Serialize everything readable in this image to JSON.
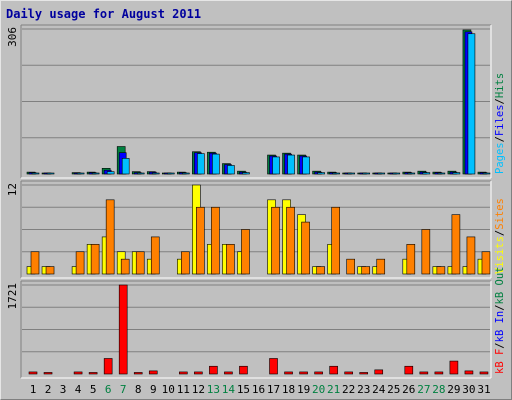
{
  "title": "Daily usage for August 2011",
  "colors": {
    "pages": "#00c0ff",
    "files": "#0000ff",
    "hits": "#008040",
    "visits": "#ffff00",
    "sites": "#ff8000",
    "kb": "#ff0000",
    "kb_in": "#0000ff",
    "kb_out": "#008040",
    "weekend_day": "#008040"
  },
  "chart_data": [
    {
      "type": "bar",
      "panel": "top",
      "ymax_label": "306",
      "ylim": [
        0,
        306
      ],
      "grid": true,
      "legend": {
        "placement": "right",
        "entries": [
          "Pages",
          "/",
          "Files",
          "/",
          "Hits"
        ]
      },
      "categories": [
        "1",
        "2",
        "3",
        "4",
        "5",
        "6",
        "7",
        "8",
        "9",
        "10",
        "11",
        "12",
        "13",
        "14",
        "15",
        "16",
        "17",
        "18",
        "19",
        "20",
        "21",
        "22",
        "23",
        "24",
        "25",
        "26",
        "27",
        "28",
        "29",
        "30",
        "31"
      ],
      "series": [
        {
          "name": "Hits",
          "values": [
            4,
            2,
            0,
            3,
            4,
            12,
            58,
            5,
            5,
            2,
            4,
            47,
            46,
            22,
            6,
            0,
            40,
            44,
            40,
            6,
            4,
            2,
            2,
            2,
            2,
            4,
            6,
            4,
            6,
            304,
            4
          ]
        },
        {
          "name": "Files",
          "values": [
            3,
            2,
            0,
            2,
            3,
            8,
            45,
            3,
            4,
            1,
            3,
            45,
            44,
            20,
            4,
            0,
            38,
            42,
            38,
            4,
            3,
            1,
            1,
            1,
            1,
            3,
            4,
            3,
            4,
            300,
            3
          ]
        },
        {
          "name": "Pages",
          "values": [
            2,
            1,
            0,
            1,
            2,
            5,
            33,
            2,
            2,
            1,
            2,
            43,
            42,
            18,
            3,
            0,
            36,
            40,
            36,
            3,
            2,
            1,
            1,
            1,
            1,
            2,
            3,
            2,
            3,
            296,
            2
          ]
        }
      ]
    },
    {
      "type": "bar",
      "panel": "middle",
      "ymax_label": "12",
      "ylim": [
        0,
        12
      ],
      "grid": true,
      "legend": {
        "placement": "right",
        "entries": [
          "Visits",
          "/",
          "Sites"
        ]
      },
      "categories": [
        "1",
        "2",
        "3",
        "4",
        "5",
        "6",
        "7",
        "8",
        "9",
        "10",
        "11",
        "12",
        "13",
        "14",
        "15",
        "16",
        "17",
        "18",
        "19",
        "20",
        "21",
        "22",
        "23",
        "24",
        "25",
        "26",
        "27",
        "28",
        "29",
        "30",
        "31"
      ],
      "series": [
        {
          "name": "Visits",
          "values": [
            1,
            1,
            0,
            1,
            4,
            5,
            3,
            3,
            2,
            0,
            2,
            12,
            4,
            4,
            3,
            0,
            10,
            10,
            8,
            1,
            4,
            0,
            1,
            1,
            0,
            2,
            0,
            1,
            1,
            1,
            2
          ]
        },
        {
          "name": "Sites",
          "values": [
            3,
            1,
            0,
            3,
            4,
            10,
            2,
            3,
            5,
            0,
            3,
            9,
            9,
            4,
            6,
            0,
            9,
            9,
            7,
            1,
            9,
            2,
            1,
            2,
            0,
            4,
            6,
            1,
            8,
            5,
            3
          ]
        }
      ]
    },
    {
      "type": "bar",
      "panel": "bottom",
      "ymax_label": "1721",
      "ylim": [
        0,
        1721
      ],
      "grid": true,
      "legend": {
        "placement": "right",
        "entries": [
          "kB F",
          "/",
          "kB In",
          "/",
          "kB Out"
        ]
      },
      "categories": [
        "1",
        "2",
        "3",
        "4",
        "5",
        "6",
        "7",
        "8",
        "9",
        "10",
        "11",
        "12",
        "13",
        "14",
        "15",
        "16",
        "17",
        "18",
        "19",
        "20",
        "21",
        "22",
        "23",
        "24",
        "25",
        "26",
        "27",
        "28",
        "29",
        "30",
        "31"
      ],
      "series": [
        {
          "name": "kB F",
          "values": [
            40,
            30,
            0,
            40,
            30,
            300,
            1721,
            30,
            60,
            0,
            40,
            40,
            150,
            40,
            150,
            0,
            300,
            40,
            40,
            40,
            150,
            40,
            30,
            80,
            0,
            150,
            40,
            40,
            250,
            60,
            40
          ]
        }
      ]
    }
  ],
  "x_axis": {
    "labels": [
      "1",
      "2",
      "3",
      "4",
      "5",
      "6",
      "7",
      "8",
      "9",
      "10",
      "11",
      "12",
      "13",
      "14",
      "15",
      "16",
      "17",
      "18",
      "19",
      "20",
      "21",
      "22",
      "23",
      "24",
      "25",
      "26",
      "27",
      "28",
      "29",
      "30",
      "31"
    ],
    "weekend": [
      "6",
      "7",
      "13",
      "14",
      "20",
      "21",
      "27",
      "28"
    ]
  }
}
